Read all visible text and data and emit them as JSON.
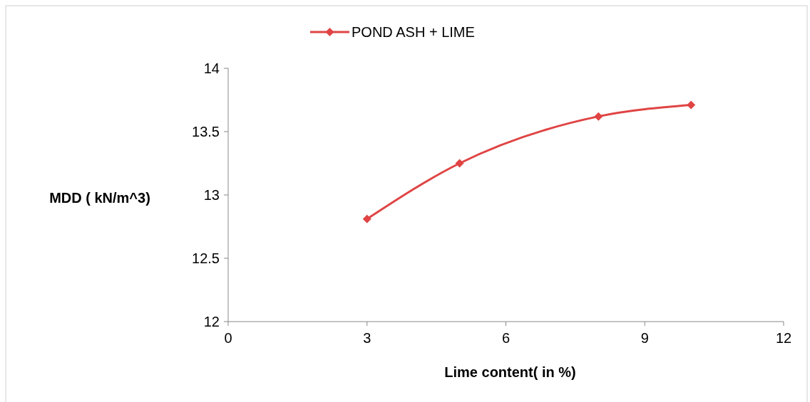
{
  "chart_data": {
    "type": "line",
    "xlabel": "Lime content( in %)",
    "ylabel": "MDD ( kN/m^3)",
    "x": [
      3,
      5,
      8,
      10
    ],
    "series": [
      {
        "name": "POND ASH + LIME",
        "color": "#e04444",
        "values": [
          12.81,
          13.25,
          13.62,
          13.71
        ]
      }
    ],
    "xlim": [
      0,
      12
    ],
    "xticks": [
      0,
      3,
      6,
      9,
      12
    ],
    "ylim": [
      12,
      14
    ],
    "yticks": [
      12,
      12.5,
      13,
      13.5,
      14
    ],
    "grid": false,
    "legend": "top",
    "marker": "diamond",
    "line_style": "solid"
  }
}
